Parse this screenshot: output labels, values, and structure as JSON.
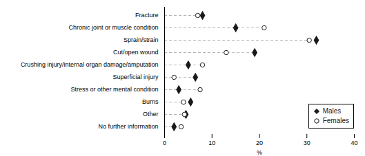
{
  "chart_data": {
    "type": "dot",
    "orientation": "horizontal",
    "categories": [
      "Fracture",
      "Chronic joint or muscle condition",
      "Sprain/strain",
      "Cut/open wound",
      "Crushing injury/internal organ damage/amputation",
      "Superficial injury",
      "Stress or other mental condition",
      "Burns",
      "Other",
      "No further information"
    ],
    "series": [
      {
        "name": "Males",
        "color": "#1a1a1a",
        "marker": "diamond",
        "values": [
          8.0,
          15.0,
          32.0,
          19.0,
          5.0,
          6.5,
          3.0,
          5.5,
          4.5,
          2.0
        ]
      },
      {
        "name": "Females",
        "color": "#1a1a1a",
        "marker": "circle",
        "values": [
          7.0,
          21.0,
          30.5,
          13.0,
          8.0,
          2.0,
          7.5,
          4.0,
          4.2,
          3.5
        ]
      }
    ],
    "color": "#b0b0b0",
    "line_style": "dashed",
    "xlabel": "%",
    "xlim": [
      0,
      40
    ],
    "xticks": [
      0,
      10,
      20,
      30,
      40
    ],
    "legend": "lower right"
  }
}
